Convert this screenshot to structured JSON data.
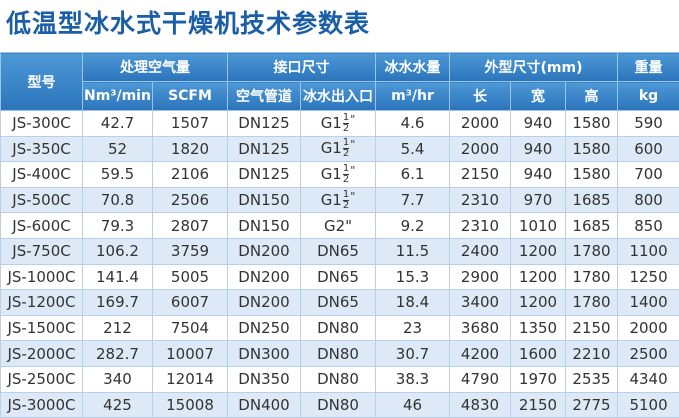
{
  "title": "低温型冰水式干燥机技术参数表",
  "table": {
    "header_top": [
      {
        "text": "型号",
        "rowspan": 2,
        "colspan": 1
      },
      {
        "text": "处理空气量",
        "rowspan": 1,
        "colspan": 2
      },
      {
        "text": "接口尺寸",
        "rowspan": 1,
        "colspan": 2
      },
      {
        "text": "冰水水量",
        "rowspan": 1,
        "colspan": 1
      },
      {
        "text": "外型尺寸(mm)",
        "rowspan": 1,
        "colspan": 3
      },
      {
        "text": "重量",
        "rowspan": 1,
        "colspan": 1
      }
    ],
    "header_sub": [
      "Nm³/min",
      "SCFM",
      "空气管道",
      "冰水出入口",
      "m³/hr",
      "长",
      "宽",
      "高",
      "kg"
    ],
    "rows": [
      [
        "JS-300C",
        42.7,
        1507,
        "DN125",
        {
          "whole": "G1",
          "numerator": "1",
          "denominator": "2",
          "suffix": "\""
        },
        4.6,
        2000,
        940,
        1580,
        590
      ],
      [
        "JS-350C",
        52,
        1820,
        "DN125",
        {
          "whole": "G1",
          "numerator": "1",
          "denominator": "2",
          "suffix": "\""
        },
        5.4,
        2000,
        940,
        1580,
        600
      ],
      [
        "JS-400C",
        59.5,
        2106,
        "DN125",
        {
          "whole": "G1",
          "numerator": "1",
          "denominator": "2",
          "suffix": "\""
        },
        6.1,
        2150,
        940,
        1580,
        700
      ],
      [
        "JS-500C",
        70.8,
        2506,
        "DN150",
        {
          "whole": "G1",
          "numerator": "1",
          "denominator": "2",
          "suffix": "\""
        },
        7.7,
        2310,
        970,
        1685,
        800
      ],
      [
        "JS-600C",
        79.3,
        2807,
        "DN150",
        "G2\"",
        9.2,
        2310,
        1010,
        1685,
        850
      ],
      [
        "JS-750C",
        106.2,
        3759,
        "DN200",
        "DN65",
        11.5,
        2400,
        1200,
        1780,
        1100
      ],
      [
        "JS-1000C",
        141.4,
        5005,
        "DN200",
        "DN65",
        15.3,
        2900,
        1200,
        1780,
        1250
      ],
      [
        "JS-1200C",
        169.7,
        6007,
        "DN200",
        "DN65",
        18.4,
        3400,
        1200,
        1780,
        1400
      ],
      [
        "JS-1500C",
        212,
        7504,
        "DN250",
        "DN80",
        23,
        3680,
        1350,
        2150,
        2000
      ],
      [
        "JS-2000C",
        282.7,
        10007,
        "DN300",
        "DN80",
        30.7,
        4200,
        1600,
        2210,
        2500
      ],
      [
        "JS-2500C",
        340,
        12014,
        "DN350",
        "DN80",
        38.3,
        4790,
        1970,
        2535,
        4340
      ],
      [
        "JS-3000C",
        425,
        15008,
        "DN400",
        "DN80",
        46,
        4830,
        2150,
        2775,
        5100
      ]
    ]
  }
}
